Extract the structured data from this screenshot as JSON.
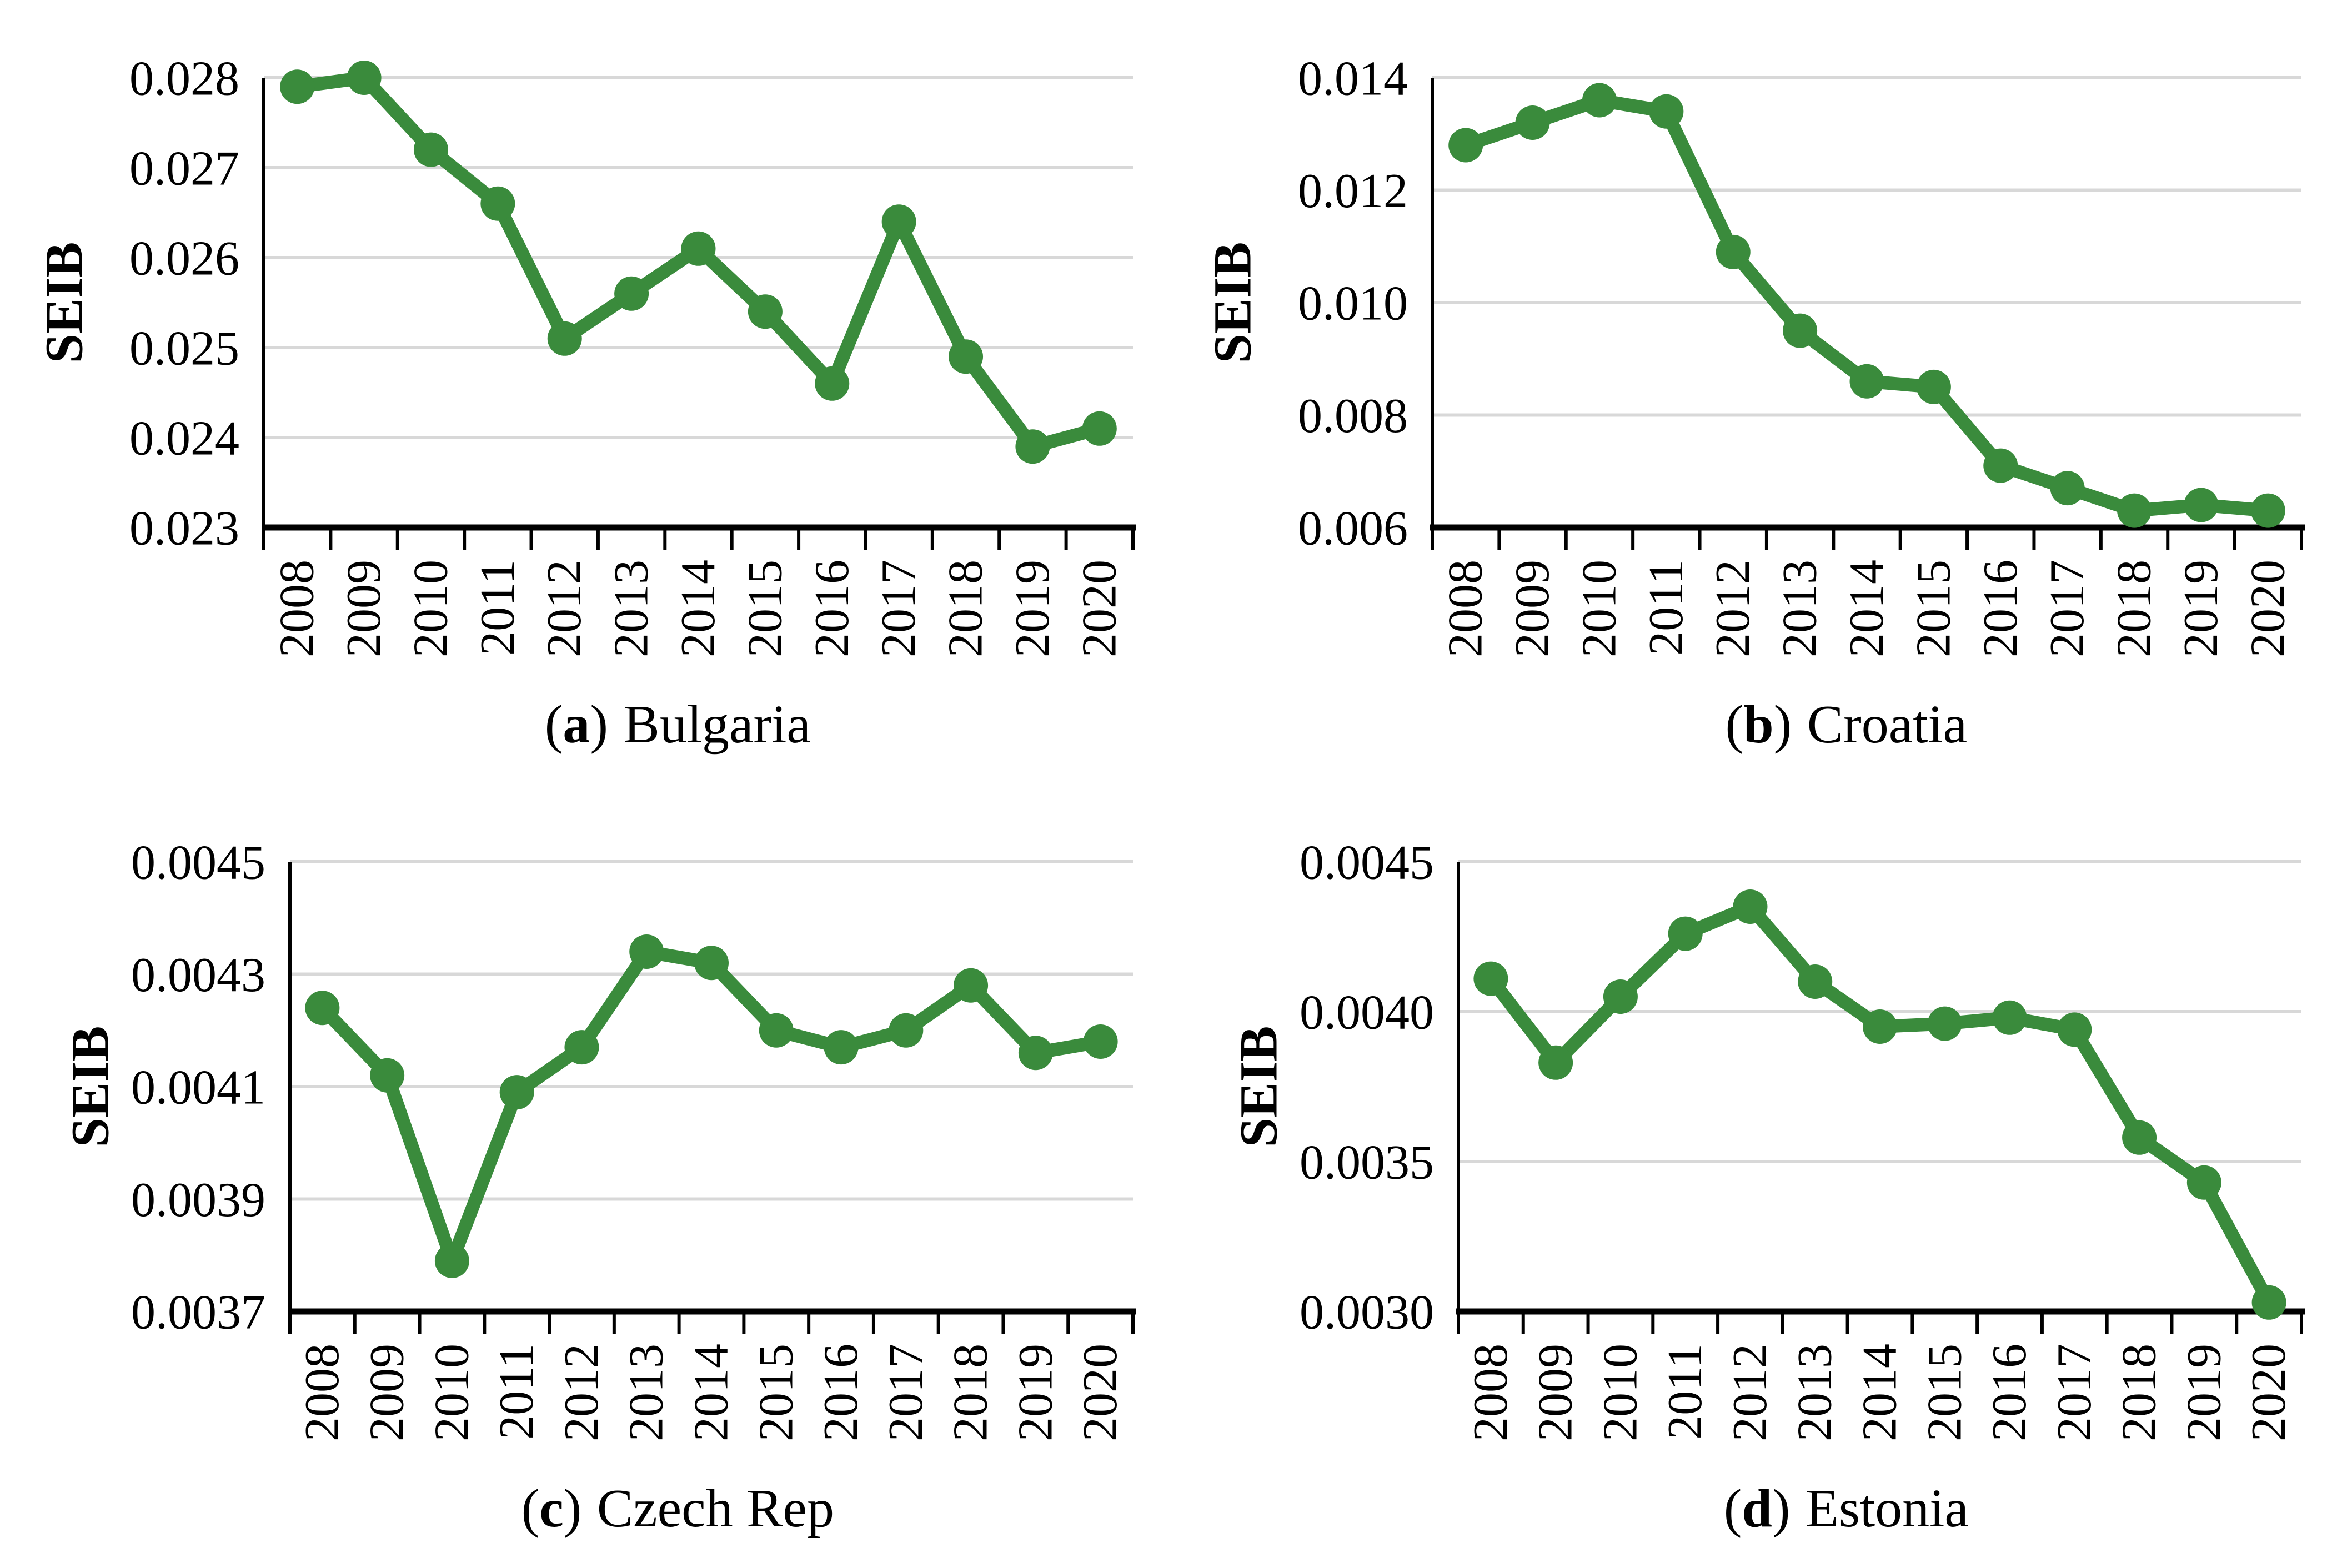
{
  "figure": {
    "background": "#ffffff",
    "line_color": "#3a8b3c",
    "grid_color": "#d8d8d8",
    "axis_color": "#000000",
    "marker": "circle",
    "ylabel": "SEIB"
  },
  "chart_data": [
    {
      "type": "line",
      "caption_open": "(",
      "caption_letter": "a",
      "caption_close": ")",
      "caption_text": "Bulgaria",
      "title": "",
      "xlabel": "",
      "ylabel": "SEIB",
      "legend": "none",
      "grid": true,
      "line_color": "#3a8b3c",
      "x": [
        "2008",
        "2009",
        "2010",
        "2011",
        "2012",
        "2013",
        "2014",
        "2015",
        "2016",
        "2017",
        "2018",
        "2019",
        "2020"
      ],
      "values": [
        0.0279,
        0.028,
        0.0272,
        0.0266,
        0.0251,
        0.0256,
        0.0261,
        0.0254,
        0.0246,
        0.0264,
        0.0249,
        0.0239,
        0.0241
      ],
      "ylim": [
        0.023,
        0.028
      ],
      "yticks": [
        0.023,
        0.024,
        0.025,
        0.026,
        0.027,
        0.028
      ],
      "ytick_labels": [
        "0.023",
        "0.024",
        "0.025",
        "0.026",
        "0.027",
        "0.028"
      ]
    },
    {
      "type": "line",
      "caption_open": "(",
      "caption_letter": "b",
      "caption_close": ")",
      "caption_text": "Croatia",
      "title": "",
      "xlabel": "",
      "ylabel": "SEIB",
      "legend": "none",
      "grid": true,
      "line_color": "#3a8b3c",
      "x": [
        "2008",
        "2009",
        "2010",
        "2011",
        "2012",
        "2013",
        "2014",
        "2015",
        "2016",
        "2017",
        "2018",
        "2019",
        "2020"
      ],
      "values": [
        0.0128,
        0.0132,
        0.0136,
        0.0134,
        0.0109,
        0.0095,
        0.0086,
        0.0085,
        0.0071,
        0.0067,
        0.0063,
        0.0064,
        0.0063
      ],
      "ylim": [
        0.006,
        0.014
      ],
      "yticks": [
        0.006,
        0.008,
        0.01,
        0.012,
        0.014
      ],
      "ytick_labels": [
        "0.006",
        "0.008",
        "0.010",
        "0.012",
        "0.014"
      ]
    },
    {
      "type": "line",
      "caption_open": "(",
      "caption_letter": "c",
      "caption_close": ")",
      "caption_text": "Czech Rep",
      "title": "",
      "xlabel": "",
      "ylabel": "SEIB",
      "legend": "none",
      "grid": true,
      "line_color": "#3a8b3c",
      "x": [
        "2008",
        "2009",
        "2010",
        "2011",
        "2012",
        "2013",
        "2014",
        "2015",
        "2016",
        "2017",
        "2018",
        "2019",
        "2020"
      ],
      "values": [
        0.00424,
        0.00412,
        0.00379,
        0.00409,
        0.00417,
        0.00434,
        0.00432,
        0.0042,
        0.00417,
        0.0042,
        0.00428,
        0.00416,
        0.00418
      ],
      "ylim": [
        0.0037,
        0.0045
      ],
      "yticks": [
        0.0037,
        0.0039,
        0.0041,
        0.0043,
        0.0045
      ],
      "ytick_labels": [
        "0.0037",
        "0.0039",
        "0.0041",
        "0.0043",
        "0.0045"
      ]
    },
    {
      "type": "line",
      "caption_open": "(",
      "caption_letter": "d",
      "caption_close": ")",
      "caption_text": "Estonia",
      "title": "",
      "xlabel": "",
      "ylabel": "SEIB",
      "legend": "none",
      "grid": true,
      "line_color": "#3a8b3c",
      "x": [
        "2008",
        "2009",
        "2010",
        "2011",
        "2012",
        "2013",
        "2014",
        "2015",
        "2016",
        "2017",
        "2018",
        "2019",
        "2020"
      ],
      "values": [
        0.00411,
        0.00383,
        0.00405,
        0.00426,
        0.00435,
        0.0041,
        0.00395,
        0.00396,
        0.00398,
        0.00394,
        0.00358,
        0.00343,
        0.00303
      ],
      "ylim": [
        0.003,
        0.0045
      ],
      "yticks": [
        0.003,
        0.0035,
        0.004,
        0.0045
      ],
      "ytick_labels": [
        "0.0030",
        "0.0035",
        "0.0040",
        "0.0045"
      ]
    }
  ]
}
